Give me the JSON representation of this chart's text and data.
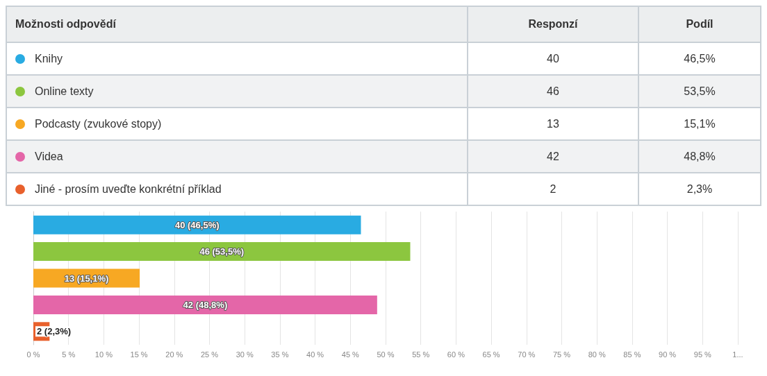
{
  "chart_data": {
    "type": "bar",
    "orientation": "horizontal",
    "categories": [
      null,
      null,
      null,
      null,
      null
    ],
    "values": [
      46.5,
      53.5,
      15.1,
      48.8,
      2.3
    ],
    "colors": [
      "#29abe2",
      "#8cc63f",
      "#f7a823",
      "#e466a8",
      "#e8602c"
    ],
    "value_labels": [
      "40 (46,5%)",
      "46 (53,5%)",
      "13 (15,1%)",
      "42 (48,8%)",
      "2 (2,3%)"
    ],
    "annotations": [
      "Možnosti odpovědí",
      "Responzí",
      "Podíl",
      "Knihy",
      "40",
      "46,5%",
      "Online texty",
      "46",
      "53,5%",
      "Podcasty (zvukové stopy)",
      "13",
      "15,1%",
      "Videa",
      "42",
      "48,8%",
      "Jiné - prosím uveďte konkrétní příklad",
      "2",
      "2,3%"
    ],
    "xlim": [
      0,
      100
    ],
    "xticks": [
      {
        "value": 0,
        "label": "0 %"
      },
      {
        "value": 5,
        "label": "5 %"
      },
      {
        "value": 10,
        "label": "10 %"
      },
      {
        "value": 15,
        "label": "15 %"
      },
      {
        "value": 20,
        "label": "20 %"
      },
      {
        "value": 25,
        "label": "25 %"
      },
      {
        "value": 30,
        "label": "30 %"
      },
      {
        "value": 35,
        "label": "35 %"
      },
      {
        "value": 40,
        "label": "40 %"
      },
      {
        "value": 45,
        "label": "45 %"
      },
      {
        "value": 50,
        "label": "50 %"
      },
      {
        "value": 55,
        "label": "55 %"
      },
      {
        "value": 60,
        "label": "60 %"
      },
      {
        "value": 65,
        "label": "65 %"
      },
      {
        "value": 70,
        "label": "70 %"
      },
      {
        "value": 75,
        "label": "75 %"
      },
      {
        "value": 80,
        "label": "80 %"
      },
      {
        "value": 85,
        "label": "85 %"
      },
      {
        "value": 90,
        "label": "90 %"
      },
      {
        "value": 95,
        "label": "95 %"
      },
      {
        "value": 100,
        "label": "1..."
      }
    ],
    "grid": "x",
    "tick_labels": "x"
  }
}
